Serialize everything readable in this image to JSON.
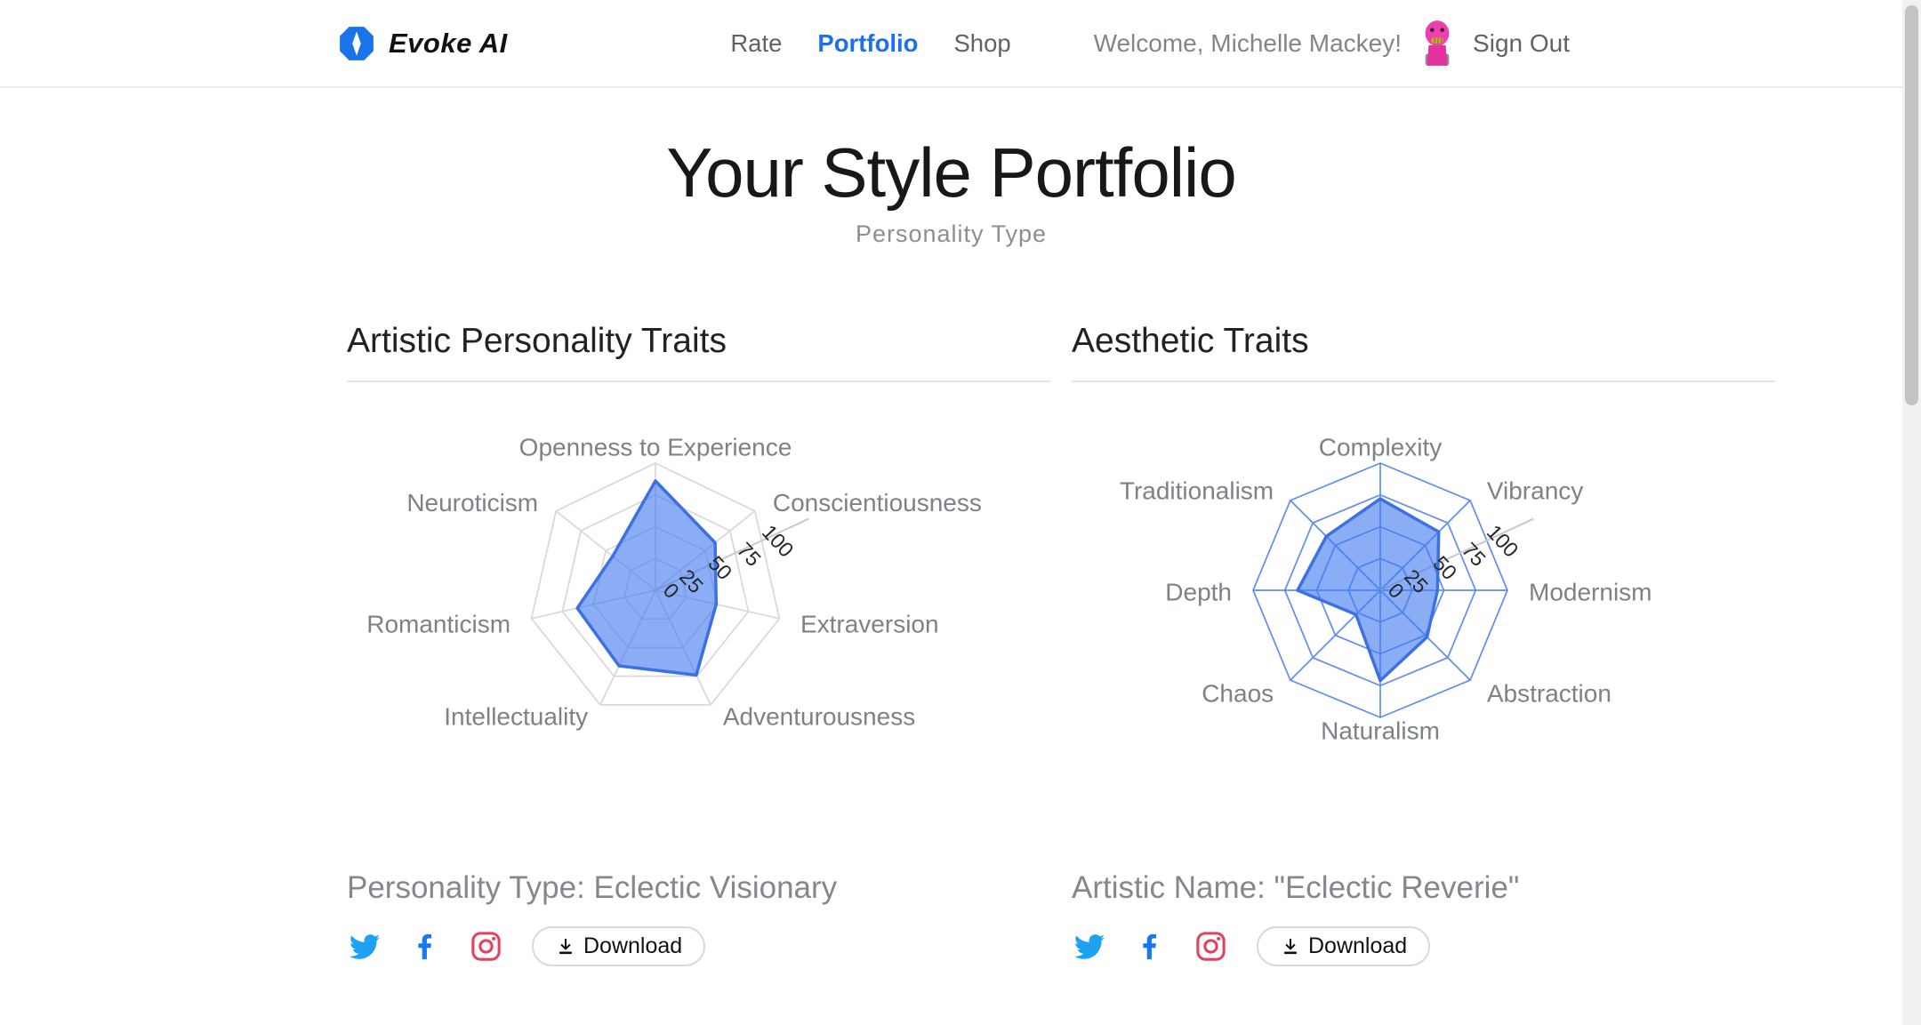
{
  "header": {
    "logo_text": "Evoke AI",
    "nav": [
      {
        "label": "Rate",
        "active": false
      },
      {
        "label": "Portfolio",
        "active": true
      },
      {
        "label": "Shop",
        "active": false
      }
    ],
    "welcome": "Welcome, Michelle Mackey!",
    "sign_out": "Sign Out"
  },
  "hero": {
    "title": "Your Style Portfolio",
    "subtitle": "Personality Type"
  },
  "sections": [
    {
      "heading": "Artistic Personality Traits",
      "caption": "Personality Type: Eclectic Visionary",
      "download_label": "Download",
      "social_icons": [
        "twitter-icon",
        "facebook-icon",
        "instagram-icon"
      ]
    },
    {
      "heading": "Aesthetic Traits",
      "caption": "Artistic Name: \"Eclectic Reverie\"",
      "download_label": "Download",
      "social_icons": [
        "twitter-icon",
        "facebook-icon",
        "instagram-icon"
      ]
    }
  ],
  "chart_data": [
    {
      "type": "radar",
      "title": "Artistic Personality Traits",
      "categories": [
        "Openness to Experience",
        "Conscientiousness",
        "Extraversion",
        "Adventurousness",
        "Intellectuality",
        "Romanticism",
        "Neuroticism"
      ],
      "values": [
        86,
        60,
        49,
        74,
        66,
        63,
        43
      ],
      "rlim": [
        0,
        100
      ],
      "ticks": [
        0,
        25,
        50,
        75,
        100
      ],
      "legend": "none",
      "grid": true,
      "grid_color": "#d8d8d8",
      "axis_line_color": "#c9c9c9",
      "fill_color": "rgba(66,122,240,0.62)",
      "stroke_color": "#3c70e4",
      "tick_color": "#26282b",
      "label_color": "#7d8287"
    },
    {
      "type": "radar",
      "title": "Aesthetic Traits",
      "categories": [
        "Complexity",
        "Vibrancy",
        "Modernism",
        "Abstraction",
        "Naturalism",
        "Chaos",
        "Depth",
        "Traditionalism"
      ],
      "values": [
        72,
        65,
        45,
        52,
        71,
        27,
        65,
        60
      ],
      "rlim": [
        0,
        100
      ],
      "ticks": [
        0,
        25,
        50,
        75,
        100
      ],
      "legend": "none",
      "grid": true,
      "grid_color": "#5f8ef2",
      "axis_line_color": "#c9c9c9",
      "fill_color": "rgba(66,122,240,0.62)",
      "stroke_color": "#3c70e4",
      "tick_color": "#26282b",
      "label_color": "#7d8287"
    }
  ],
  "colors": {
    "brand_blue": "#1a73e8",
    "active_nav": "#1a6ff3",
    "twitter": "#1da1f2",
    "facebook": "#1877f2",
    "instagram": "#e4405f",
    "avatar_pink": "#ee3fae",
    "radar_fill": "rgba(66,122,240,0.62)",
    "radar_stroke": "#3c70e4"
  }
}
